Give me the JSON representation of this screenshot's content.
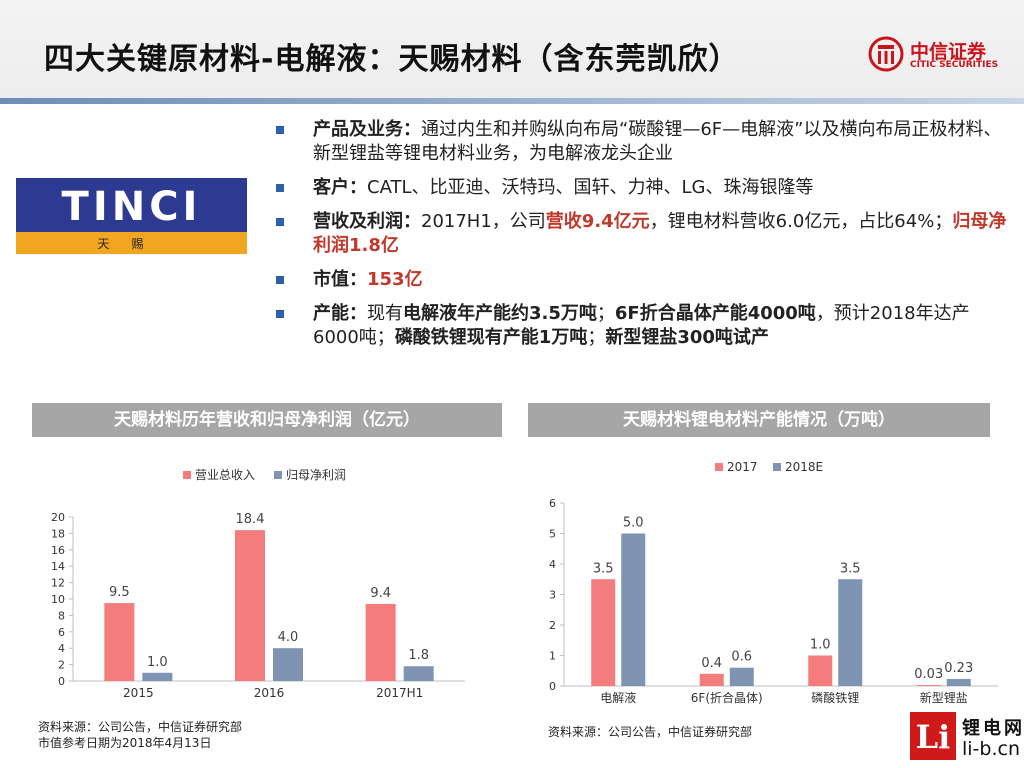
{
  "title": "四大关键原材料-电解液：天赐材料（含东莞凯欣）",
  "brand": {
    "cn": "中信证券",
    "en": "CITIC SECURITIES",
    "color": "#c8151b"
  },
  "logo": {
    "word": "TINCI",
    "cn": "天赐",
    "colors": {
      "blue": "#2d3a92",
      "orange": "#f1a520"
    }
  },
  "bullets": [
    {
      "label": "产品及业务：",
      "text": "通过内生和并购纵向布局“碳酸锂—6F—电解液”以及横向布局正极材料、新型锂盐等锂电材料业务，为电解液龙头企业"
    },
    {
      "label": "客户：",
      "text": "CATL、比亚迪、沃特玛、国轩、力神、LG、珠海银隆等"
    },
    {
      "label": "营收及利润：",
      "p1": "2017H1，公司",
      "hl1": "营收9.4亿元",
      "p2": "，锂电材料营收6.0亿元，占比64%；",
      "hl2": "归母净利润1.8亿"
    },
    {
      "label": "市值：",
      "hl1": "153亿"
    },
    {
      "label": "产能：",
      "p1": "现有",
      "b1": "电解液年产能约3.5万吨",
      "p2": "；",
      "b2": "6F折合晶体产能4000吨",
      "p3": "，预计2018年达产6000吨；",
      "b3": "磷酸铁锂现有产能1万吨",
      "p4": "；",
      "b4": "新型锂盐300吨试产"
    }
  ],
  "chart1_header": "天赐材料历年营收和归母净利润（亿元）",
  "chart2_header": "天赐材料锂电材料产能情况（万吨）",
  "chart_data": [
    {
      "type": "bar",
      "title": "天赐材料历年营收和归母净利润（亿元）",
      "categories": [
        "2015",
        "2016",
        "2017H1"
      ],
      "series": [
        {
          "name": "营业总收入",
          "values": [
            9.5,
            18.4,
            9.4
          ],
          "labels": [
            "9.5",
            "18.4",
            "9.4"
          ],
          "color": "#f47c7c"
        },
        {
          "name": "归母净利润",
          "values": [
            1.0,
            4.0,
            1.8
          ],
          "labels": [
            "1.0",
            "4.0",
            "1.8"
          ],
          "color": "#7f93b2"
        }
      ],
      "ylim": [
        0,
        20
      ],
      "yticks": [
        "0",
        "2",
        "4",
        "6",
        "8",
        "10",
        "12",
        "14",
        "16",
        "18",
        "20"
      ],
      "grid": false,
      "legend": "top"
    },
    {
      "type": "bar",
      "title": "天赐材料锂电材料产能情况（万吨）",
      "categories": [
        "电解液",
        "6F(折合晶体)",
        "磷酸铁锂",
        "新型锂盐"
      ],
      "series": [
        {
          "name": "2017",
          "values": [
            3.5,
            0.4,
            1.0,
            0.03
          ],
          "labels": [
            "3.5",
            "0.4",
            "1.0",
            "0.03"
          ],
          "color": "#f47c7c"
        },
        {
          "name": "2018E",
          "values": [
            5.0,
            0.6,
            3.5,
            0.23
          ],
          "labels": [
            "5.0",
            "0.6",
            "3.5",
            "0.23"
          ],
          "color": "#7f93b2"
        }
      ],
      "ylim": [
        0,
        6
      ],
      "yticks": [
        "0",
        "1",
        "2",
        "3",
        "4",
        "5",
        "6"
      ],
      "grid": false,
      "legend": "top"
    }
  ],
  "source1": [
    "资料来源：公司公告，中信证券研究部",
    "市值参考日期为2018年4月13日"
  ],
  "source2": "资料来源：公司公告，中信证券研究部",
  "watermark": {
    "li": "Li",
    "cn": "锂电网",
    "en": "li-b.cn"
  }
}
